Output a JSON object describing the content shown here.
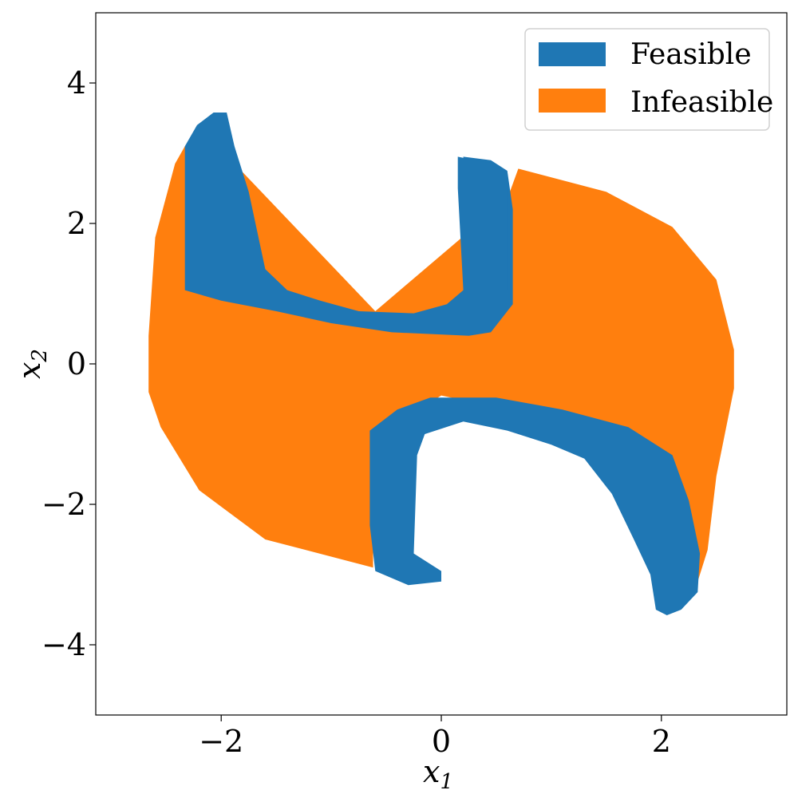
{
  "chart_data": {
    "type": "heatmap",
    "title": "",
    "xlabel": {
      "symbol": "x",
      "subscript": "1"
    },
    "ylabel": {
      "symbol": "x",
      "subscript": "2"
    },
    "xlim": [
      -3.14,
      3.14
    ],
    "ylim": [
      -5,
      5
    ],
    "xticks": [
      -2,
      0,
      2
    ],
    "yticks": [
      -4,
      -2,
      0,
      2,
      4
    ],
    "xtick_labels": [
      "−2",
      "0",
      "2"
    ],
    "ytick_labels": [
      "−4",
      "−2",
      "0",
      "2",
      "4"
    ],
    "grid": false,
    "legend": {
      "placement": "top-right"
    },
    "series": [
      {
        "name": "Feasible",
        "color": "#1f77b4"
      },
      {
        "name": "Infeasible",
        "color": "#ff7f0e"
      }
    ],
    "regions": {
      "Infeasible": [
        [
          -2.66,
          0.4
        ],
        [
          -2.6,
          1.8
        ],
        [
          -2.42,
          2.85
        ],
        [
          -2.33,
          3.1
        ],
        [
          -2.14,
          3.28
        ],
        [
          -0.6,
          0.75
        ],
        [
          0.6,
          2.35
        ],
        [
          0.7,
          2.78
        ],
        [
          1.5,
          2.45
        ],
        [
          2.1,
          1.95
        ],
        [
          2.5,
          1.2
        ],
        [
          2.66,
          0.2
        ],
        [
          2.66,
          -0.35
        ],
        [
          2.5,
          -1.6
        ],
        [
          2.42,
          -2.65
        ],
        [
          2.33,
          -3.1
        ],
        [
          2.05,
          -2.0
        ],
        [
          1.2,
          -0.85
        ],
        [
          0.0,
          -0.45
        ],
        [
          -0.62,
          -1.05
        ],
        [
          -0.62,
          -2.9
        ],
        [
          -1.6,
          -2.5
        ],
        [
          -2.2,
          -1.8
        ],
        [
          -2.55,
          -0.9
        ],
        [
          -2.66,
          -0.4
        ]
      ],
      "Feasible_upper_left": [
        [
          -2.33,
          1.1
        ],
        [
          -2.33,
          3.1
        ],
        [
          -2.22,
          3.4
        ],
        [
          -2.07,
          3.58
        ],
        [
          -1.95,
          3.58
        ],
        [
          -1.88,
          3.1
        ],
        [
          -1.75,
          2.45
        ],
        [
          -1.6,
          1.35
        ],
        [
          -1.4,
          1.05
        ],
        [
          -1.1,
          0.9
        ],
        [
          -0.75,
          0.75
        ],
        [
          -0.25,
          0.72
        ],
        [
          0.05,
          0.85
        ],
        [
          0.2,
          1.05
        ],
        [
          0.2,
          2.95
        ],
        [
          0.45,
          2.9
        ],
        [
          0.6,
          2.75
        ],
        [
          0.65,
          2.2
        ],
        [
          0.65,
          0.85
        ],
        [
          0.45,
          0.45
        ],
        [
          0.25,
          0.4
        ],
        [
          -0.45,
          0.45
        ],
        [
          -1.0,
          0.58
        ],
        [
          -1.5,
          0.75
        ],
        [
          -2.0,
          0.9
        ],
        [
          -2.33,
          1.05
        ]
      ],
      "Feasible_upper_right": [
        [
          0.15,
          2.95
        ],
        [
          0.3,
          2.9
        ],
        [
          0.5,
          2.85
        ],
        [
          0.6,
          2.7
        ],
        [
          0.6,
          1.05
        ],
        [
          0.2,
          1.05
        ],
        [
          0.15,
          2.5
        ]
      ],
      "Feasible_lower_left": [
        [
          -0.65,
          -0.95
        ],
        [
          -0.4,
          -0.65
        ],
        [
          -0.1,
          -0.48
        ],
        [
          0.5,
          -0.48
        ],
        [
          1.1,
          -0.65
        ],
        [
          1.7,
          -0.9
        ],
        [
          2.1,
          -1.3
        ],
        [
          2.25,
          -1.95
        ],
        [
          2.35,
          -2.7
        ],
        [
          2.33,
          -3.25
        ],
        [
          2.18,
          -3.5
        ],
        [
          2.05,
          -3.58
        ],
        [
          1.95,
          -3.5
        ],
        [
          1.9,
          -3.0
        ],
        [
          1.75,
          -2.5
        ],
        [
          1.55,
          -1.85
        ],
        [
          1.3,
          -1.35
        ],
        [
          1.0,
          -1.15
        ],
        [
          0.6,
          -0.95
        ],
        [
          0.2,
          -0.82
        ],
        [
          -0.15,
          -1.0
        ],
        [
          -0.22,
          -1.3
        ],
        [
          -0.25,
          -2.7
        ],
        [
          0.0,
          -2.95
        ],
        [
          0.0,
          -3.1
        ],
        [
          -0.3,
          -3.15
        ],
        [
          -0.6,
          -2.95
        ],
        [
          -0.65,
          -2.3
        ]
      ]
    }
  }
}
